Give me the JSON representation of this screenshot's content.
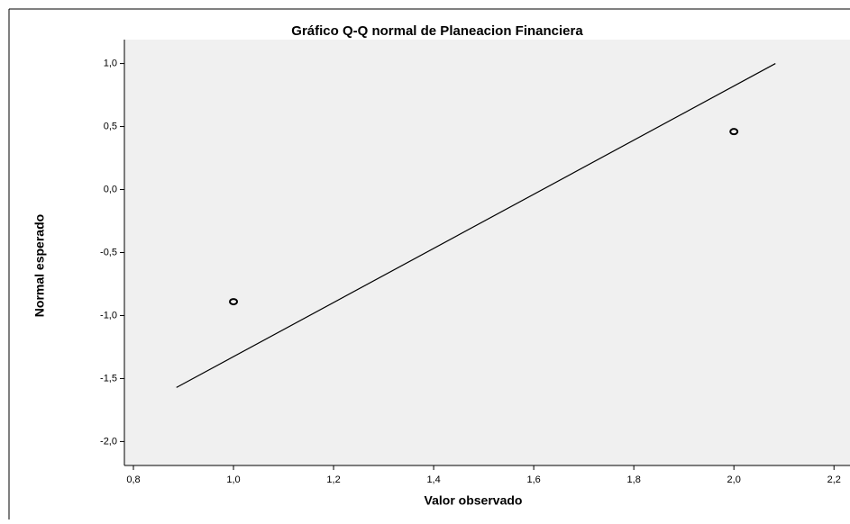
{
  "chart_data": {
    "type": "scatter",
    "title": "Gráfico Q-Q normal de Planeacion Financiera",
    "x_label": "Valor observado",
    "y_label": "Normal esperado",
    "x": [
      1.0,
      2.0
    ],
    "values": [
      -0.89,
      0.46
    ],
    "reference_line": {
      "x": [
        0.886,
        2.083
      ],
      "values": [
        -1.571,
        1.0
      ]
    },
    "xlim": [
      0.782,
      2.232
    ],
    "ylim": [
      -2.19,
      1.19
    ],
    "xticks": [
      {
        "value": 0.8,
        "label": "0,8"
      },
      {
        "value": 1.0,
        "label": "1,0"
      },
      {
        "value": 1.2,
        "label": "1,2"
      },
      {
        "value": 1.4,
        "label": "1,4"
      },
      {
        "value": 1.6,
        "label": "1,6"
      },
      {
        "value": 1.8,
        "label": "1,8"
      },
      {
        "value": 2.0,
        "label": "2,0"
      },
      {
        "value": 2.2,
        "label": "2,2"
      }
    ],
    "yticks": [
      {
        "value": 1.0,
        "label": "1,0"
      },
      {
        "value": 0.5,
        "label": "0,5"
      },
      {
        "value": 0.0,
        "label": "0,0"
      },
      {
        "value": -0.5,
        "label": "-0,5"
      },
      {
        "value": -1.0,
        "label": "-1,0"
      },
      {
        "value": -1.5,
        "label": "-1,5"
      },
      {
        "value": -2.0,
        "label": "-2,0"
      }
    ],
    "color": "#000000",
    "background": "#f0f0f0"
  }
}
